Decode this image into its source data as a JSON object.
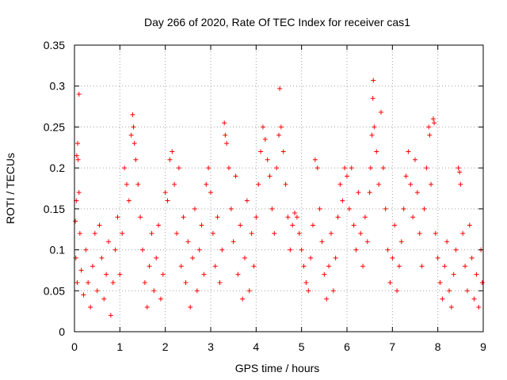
{
  "chart_data": {
    "type": "scatter",
    "title": "Day 266 of 2020, Rate Of TEC Index for receiver cas1",
    "xlabel": "GPS time / hours",
    "ylabel": "ROTI / TECUs",
    "xlim": [
      0,
      9
    ],
    "ylim": [
      0,
      0.35
    ],
    "xticks": [
      0,
      1,
      2,
      3,
      4,
      5,
      6,
      7,
      8,
      9
    ],
    "yticks": [
      0,
      0.05,
      0.1,
      0.15,
      0.2,
      0.25,
      0.3,
      0.35
    ],
    "xtick_labels": [
      "0",
      "1",
      "2",
      "3",
      "4",
      "5",
      "6",
      "7",
      "8",
      "9"
    ],
    "ytick_labels": [
      "0",
      "0.05",
      "0.1",
      "0.15",
      "0.2",
      "0.25",
      "0.3",
      "0.35"
    ],
    "grid": true,
    "marker": "plus",
    "marker_color": "#ff0000",
    "series": [
      {
        "name": "cas1",
        "points": [
          [
            0.02,
            0.135
          ],
          [
            0.04,
            0.16
          ],
          [
            0.05,
            0.215
          ],
          [
            0.07,
            0.23
          ],
          [
            0.08,
            0.21
          ],
          [
            0.1,
            0.29
          ],
          [
            0.1,
            0.17
          ],
          [
            0.03,
            0.09
          ],
          [
            0.06,
            0.06
          ],
          [
            0.12,
            0.12
          ],
          [
            0.15,
            0.075
          ],
          [
            0.2,
            0.045
          ],
          [
            0.25,
            0.1
          ],
          [
            0.3,
            0.06
          ],
          [
            0.35,
            0.03
          ],
          [
            0.4,
            0.08
          ],
          [
            0.45,
            0.12
          ],
          [
            0.5,
            0.05
          ],
          [
            0.55,
            0.13
          ],
          [
            0.6,
            0.09
          ],
          [
            0.65,
            0.04
          ],
          [
            0.7,
            0.07
          ],
          [
            0.75,
            0.11
          ],
          [
            0.8,
            0.02
          ],
          [
            0.85,
            0.06
          ],
          [
            0.9,
            0.1
          ],
          [
            0.95,
            0.14
          ],
          [
            1.0,
            0.07
          ],
          [
            1.05,
            0.12
          ],
          [
            1.1,
            0.2
          ],
          [
            1.15,
            0.18
          ],
          [
            1.2,
            0.16
          ],
          [
            1.25,
            0.24
          ],
          [
            1.28,
            0.265
          ],
          [
            1.3,
            0.25
          ],
          [
            1.32,
            0.23
          ],
          [
            1.35,
            0.21
          ],
          [
            1.4,
            0.18
          ],
          [
            1.45,
            0.14
          ],
          [
            1.5,
            0.1
          ],
          [
            1.55,
            0.06
          ],
          [
            1.6,
            0.03
          ],
          [
            1.65,
            0.08
          ],
          [
            1.7,
            0.12
          ],
          [
            1.75,
            0.05
          ],
          [
            1.8,
            0.09
          ],
          [
            1.85,
            0.13
          ],
          [
            1.9,
            0.04
          ],
          [
            1.95,
            0.07
          ],
          [
            2.0,
            0.17
          ],
          [
            2.05,
            0.16
          ],
          [
            2.1,
            0.21
          ],
          [
            2.15,
            0.22
          ],
          [
            2.2,
            0.18
          ],
          [
            2.25,
            0.12
          ],
          [
            2.3,
            0.2
          ],
          [
            2.35,
            0.08
          ],
          [
            2.4,
            0.14
          ],
          [
            2.45,
            0.06
          ],
          [
            2.5,
            0.11
          ],
          [
            2.55,
            0.03
          ],
          [
            2.6,
            0.09
          ],
          [
            2.65,
            0.15
          ],
          [
            2.7,
            0.05
          ],
          [
            2.75,
            0.1
          ],
          [
            2.8,
            0.13
          ],
          [
            2.85,
            0.07
          ],
          [
            2.9,
            0.18
          ],
          [
            2.95,
            0.2
          ],
          [
            3.0,
            0.17
          ],
          [
            3.05,
            0.12
          ],
          [
            3.1,
            0.08
          ],
          [
            3.15,
            0.14
          ],
          [
            3.2,
            0.06
          ],
          [
            3.25,
            0.1
          ],
          [
            3.3,
            0.255
          ],
          [
            3.32,
            0.24
          ],
          [
            3.35,
            0.23
          ],
          [
            3.4,
            0.2
          ],
          [
            3.45,
            0.15
          ],
          [
            3.5,
            0.11
          ],
          [
            3.55,
            0.19
          ],
          [
            3.6,
            0.07
          ],
          [
            3.65,
            0.13
          ],
          [
            3.7,
            0.04
          ],
          [
            3.75,
            0.09
          ],
          [
            3.8,
            0.16
          ],
          [
            3.85,
            0.05
          ],
          [
            3.9,
            0.12
          ],
          [
            3.95,
            0.08
          ],
          [
            4.0,
            0.14
          ],
          [
            4.05,
            0.18
          ],
          [
            4.1,
            0.22
          ],
          [
            4.15,
            0.25
          ],
          [
            4.2,
            0.235
          ],
          [
            4.25,
            0.21
          ],
          [
            4.3,
            0.19
          ],
          [
            4.35,
            0.15
          ],
          [
            4.4,
            0.12
          ],
          [
            4.45,
            0.2
          ],
          [
            4.5,
            0.24
          ],
          [
            4.52,
            0.297
          ],
          [
            4.55,
            0.25
          ],
          [
            4.6,
            0.22
          ],
          [
            4.65,
            0.18
          ],
          [
            4.7,
            0.14
          ],
          [
            4.75,
            0.1
          ],
          [
            4.8,
            0.13
          ],
          [
            4.85,
            0.145
          ],
          [
            4.9,
            0.14
          ],
          [
            4.95,
            0.12
          ],
          [
            5.0,
            0.1
          ],
          [
            5.05,
            0.08
          ],
          [
            5.1,
            0.06
          ],
          [
            5.15,
            0.05
          ],
          [
            5.2,
            0.09
          ],
          [
            5.25,
            0.13
          ],
          [
            5.3,
            0.21
          ],
          [
            5.35,
            0.2
          ],
          [
            5.4,
            0.15
          ],
          [
            5.45,
            0.11
          ],
          [
            5.5,
            0.07
          ],
          [
            5.55,
            0.04
          ],
          [
            5.6,
            0.08
          ],
          [
            5.65,
            0.12
          ],
          [
            5.7,
            0.05
          ],
          [
            5.75,
            0.09
          ],
          [
            5.8,
            0.14
          ],
          [
            5.85,
            0.18
          ],
          [
            5.9,
            0.16
          ],
          [
            5.95,
            0.2
          ],
          [
            6.0,
            0.19
          ],
          [
            6.05,
            0.15
          ],
          [
            6.1,
            0.2
          ],
          [
            6.15,
            0.13
          ],
          [
            6.2,
            0.1
          ],
          [
            6.25,
            0.17
          ],
          [
            6.3,
            0.12
          ],
          [
            6.35,
            0.08
          ],
          [
            6.4,
            0.14
          ],
          [
            6.45,
            0.11
          ],
          [
            6.5,
            0.17
          ],
          [
            6.52,
            0.2
          ],
          [
            6.55,
            0.24
          ],
          [
            6.57,
            0.285
          ],
          [
            6.58,
            0.307
          ],
          [
            6.6,
            0.25
          ],
          [
            6.65,
            0.22
          ],
          [
            6.7,
            0.18
          ],
          [
            6.75,
            0.268
          ],
          [
            6.8,
            0.2
          ],
          [
            6.85,
            0.15
          ],
          [
            6.9,
            0.1
          ],
          [
            6.95,
            0.06
          ],
          [
            7.0,
            0.09
          ],
          [
            7.05,
            0.13
          ],
          [
            7.1,
            0.05
          ],
          [
            7.15,
            0.08
          ],
          [
            7.2,
            0.11
          ],
          [
            7.25,
            0.15
          ],
          [
            7.3,
            0.19
          ],
          [
            7.35,
            0.22
          ],
          [
            7.4,
            0.18
          ],
          [
            7.45,
            0.14
          ],
          [
            7.5,
            0.21
          ],
          [
            7.55,
            0.17
          ],
          [
            7.6,
            0.12
          ],
          [
            7.65,
            0.08
          ],
          [
            7.7,
            0.15
          ],
          [
            7.75,
            0.2
          ],
          [
            7.8,
            0.25
          ],
          [
            7.82,
            0.24
          ],
          [
            7.85,
            0.18
          ],
          [
            7.9,
            0.26
          ],
          [
            7.92,
            0.255
          ],
          [
            7.95,
            0.12
          ],
          [
            8.0,
            0.09
          ],
          [
            8.05,
            0.06
          ],
          [
            8.1,
            0.04
          ],
          [
            8.15,
            0.08
          ],
          [
            8.2,
            0.11
          ],
          [
            8.25,
            0.05
          ],
          [
            8.3,
            0.03
          ],
          [
            8.35,
            0.07
          ],
          [
            8.4,
            0.1
          ],
          [
            8.45,
            0.2
          ],
          [
            8.48,
            0.195
          ],
          [
            8.5,
            0.18
          ],
          [
            8.55,
            0.12
          ],
          [
            8.6,
            0.08
          ],
          [
            8.65,
            0.05
          ],
          [
            8.7,
            0.13
          ],
          [
            8.75,
            0.09
          ],
          [
            8.8,
            0.04
          ],
          [
            8.85,
            0.07
          ],
          [
            8.9,
            0.03
          ],
          [
            8.95,
            0.1
          ],
          [
            8.98,
            0.06
          ]
        ]
      }
    ]
  }
}
